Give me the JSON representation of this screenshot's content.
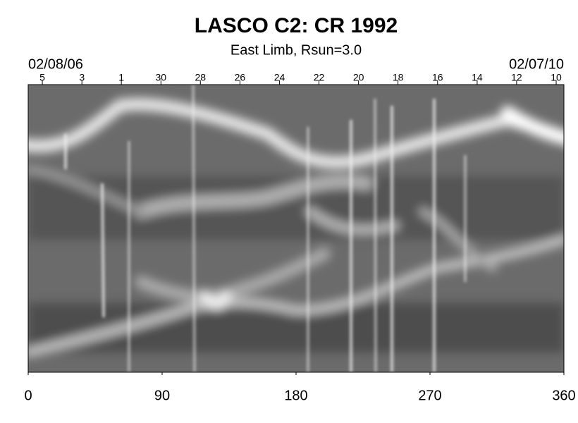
{
  "chart_data": {
    "type": "synoptic-map",
    "title": "LASCO C2: CR 1992",
    "subtitle": "East Limb, Rsun=3.0",
    "start_date": "02/08/06",
    "end_date": "02/07/10",
    "xlim": [
      0,
      360
    ],
    "xticks": [
      0,
      90,
      180,
      270,
      360
    ],
    "top_ticks": [
      {
        "value": 9.5,
        "label": "5"
      },
      {
        "value": 36.1,
        "label": "3"
      },
      {
        "value": 62.6,
        "label": "1"
      },
      {
        "value": 89.2,
        "label": "30"
      },
      {
        "value": 115.7,
        "label": "28"
      },
      {
        "value": 142.3,
        "label": "26"
      },
      {
        "value": 168.9,
        "label": "24"
      },
      {
        "value": 195.4,
        "label": "22"
      },
      {
        "value": 222.0,
        "label": "20"
      },
      {
        "value": 248.5,
        "label": "18"
      },
      {
        "value": 275.1,
        "label": "16"
      },
      {
        "value": 301.7,
        "label": "14"
      },
      {
        "value": 328.2,
        "label": "12"
      },
      {
        "value": 354.8,
        "label": "10"
      }
    ]
  }
}
